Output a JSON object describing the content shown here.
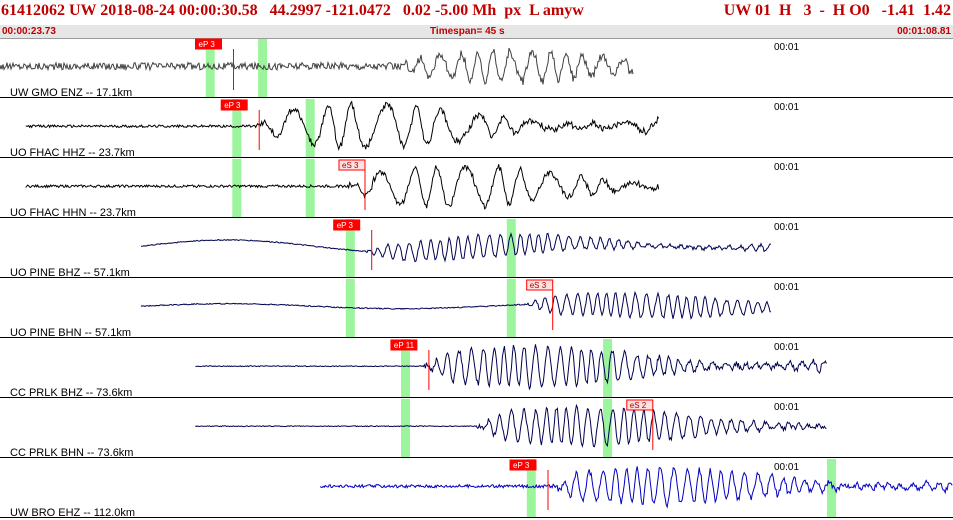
{
  "header": {
    "event_line": "61412062 UW 2018-08-24 00:00:30.58   44.2997 -121.0472   0.02 -5.00 Mh  px  L amyw",
    "channel_info": "UW 01  H   3  -  H O0   -1.41  1.42",
    "start_time": "00:00:23.73",
    "timespan": "Timespan=  45 s",
    "end_time": "00:01:08.81"
  },
  "colors": {
    "header_text": "#c00000",
    "pick_box": "#ff0000",
    "pick_window": "#9cf59c",
    "highlight_trace": "#0000c0"
  },
  "panels": [
    {
      "label": "UW GMO ENZ -- 17.1km",
      "time_label": "00:01",
      "trace_color": "#404040",
      "trace_start": 0.0,
      "trace_end": 0.665,
      "noise": 0.35,
      "onset": 0.42,
      "amp": 0.55,
      "period": 18,
      "lowfreq": 0,
      "windows": [
        0.22,
        0.275
      ],
      "pick": {
        "label": "eP 3",
        "pos": 0.245
      }
    },
    {
      "label": "UO FHAC HHZ -- 23.7km",
      "time_label": "00:01",
      "trace_color": "#000000",
      "trace_start": 0.027,
      "trace_end": 0.692,
      "noise": 0.12,
      "onset": 0.27,
      "amp": 0.8,
      "period": 30,
      "lowfreq": 0,
      "windows": [
        0.248,
        0.325
      ],
      "pick": {
        "label": "eP 3",
        "pos": 0.272
      }
    },
    {
      "label": "UO FHAC HHN -- 23.7km",
      "time_label": "00:01",
      "trace_color": "#000000",
      "trace_start": 0.027,
      "trace_end": 0.692,
      "noise": 0.12,
      "onset": 0.365,
      "amp": 0.75,
      "period": 28,
      "lowfreq": 0,
      "windows": [
        0.248,
        0.325
      ],
      "pick": {
        "label": "eS 3",
        "pos": 0.383
      }
    },
    {
      "label": "UO PINE BHZ -- 57.1km",
      "time_label": "00:01",
      "trace_color": "#000050",
      "trace_start": 0.148,
      "trace_end": 0.81,
      "noise": 0.05,
      "onset": 0.385,
      "amp": 0.42,
      "period": 10,
      "lowfreq": 0.3,
      "windows": [
        0.367,
        0.536
      ],
      "pick": {
        "label": "eP 3",
        "pos": 0.39
      }
    },
    {
      "label": "UO PINE BHN -- 57.1km",
      "time_label": "00:01",
      "trace_color": "#000050",
      "trace_start": 0.148,
      "trace_end": 0.81,
      "noise": 0.05,
      "onset": 0.55,
      "amp": 0.45,
      "period": 10,
      "lowfreq": 0.12,
      "windows": [
        0.367,
        0.536
      ],
      "pick": {
        "label": "eS 3",
        "pos": 0.58
      }
    },
    {
      "label": "CC PRLK BHZ -- 73.6km",
      "time_label": "00:01",
      "trace_color": "#000050",
      "trace_start": 0.205,
      "trace_end": 0.868,
      "noise": 0.04,
      "onset": 0.445,
      "amp": 0.75,
      "period": 11,
      "lowfreq": 0,
      "windows": [
        0.425,
        0.637
      ],
      "pick": {
        "label": "eP 11",
        "pos": 0.45
      }
    },
    {
      "label": "CC PRLK BHN -- 73.6km",
      "time_label": "00:01",
      "trace_color": "#000050",
      "trace_start": 0.205,
      "trace_end": 0.868,
      "noise": 0.04,
      "onset": 0.5,
      "amp": 0.7,
      "period": 11,
      "lowfreq": 0,
      "windows": [
        0.425,
        0.637
      ],
      "pick": {
        "label": "eS 2",
        "pos": 0.685
      }
    },
    {
      "label": "UW BRO EHZ -- 112.0km",
      "time_label": "00:01",
      "trace_color": "#0000c0",
      "trace_start": 0.336,
      "trace_end": 1.0,
      "noise": 0.15,
      "onset": 0.578,
      "amp": 0.65,
      "period": 12,
      "lowfreq": 0,
      "windows": [
        0.557,
        0.872
      ],
      "pick": {
        "label": "eP 3",
        "pos": 0.575
      }
    }
  ]
}
